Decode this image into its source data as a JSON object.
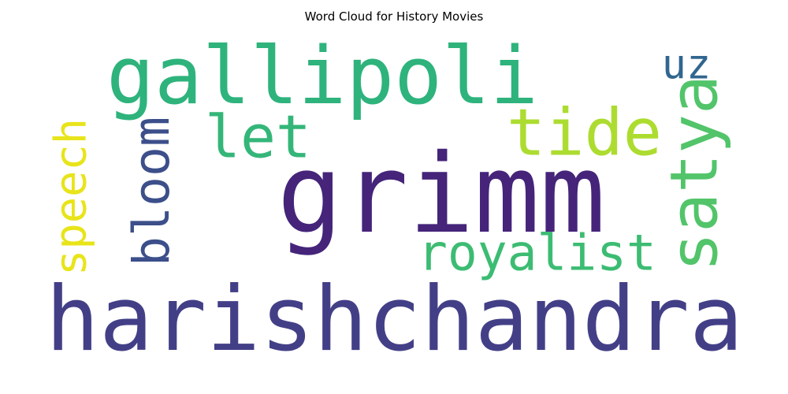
{
  "chart_data": {
    "type": "wordcloud",
    "title": "Word Cloud for History Movies",
    "words": [
      {
        "text": "grimm",
        "color": "#45247a"
      },
      {
        "text": "harishchandra",
        "color": "#433f87"
      },
      {
        "text": "gallipoli",
        "color": "#2eb37c"
      },
      {
        "text": "satya",
        "color": "#52c46a"
      },
      {
        "text": "let",
        "color": "#34b679"
      },
      {
        "text": "tide",
        "color": "#addc30"
      },
      {
        "text": "royalist",
        "color": "#3cbc73"
      },
      {
        "text": "bloom",
        "color": "#3c4f8a"
      },
      {
        "text": "speech",
        "color": "#e8e41a"
      },
      {
        "text": "uz",
        "color": "#31668e"
      }
    ]
  }
}
